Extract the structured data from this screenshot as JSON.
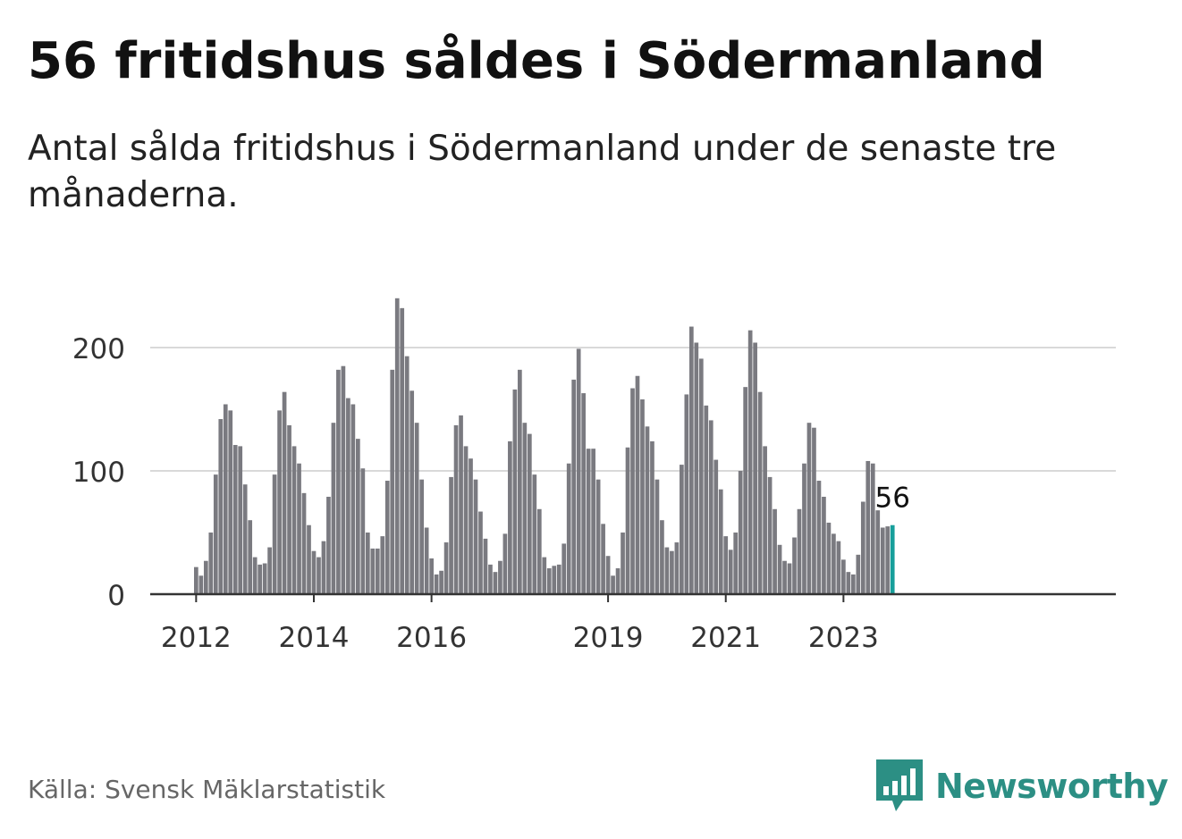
{
  "title": "56 fritidshus såldes i Södermanland",
  "subtitle": "Antal sålda fritidshus i Södermanland under de senaste tre månaderna.",
  "source": "Källa: Svensk Mäklarstatistik",
  "logo": {
    "text": "Newsworthy",
    "icon": "newsworthy-bar-icon",
    "color": "#2c8f84"
  },
  "chart_data": {
    "type": "bar",
    "title": "",
    "xlabel": "",
    "ylabel": "",
    "ylim": [
      0,
      240
    ],
    "y_ticks": [
      0,
      100,
      200
    ],
    "x_ticks": [
      "2012",
      "2014",
      "2016",
      "2019",
      "2021",
      "2023"
    ],
    "grid": true,
    "bar_color": "#7a7a80",
    "highlight_color": "#179f9b",
    "highlight_label": "56",
    "series": [
      {
        "values": [
          22,
          15,
          27,
          50,
          97,
          142,
          154,
          149,
          121,
          120,
          89,
          60,
          30,
          24,
          25,
          38,
          97,
          149,
          164,
          137,
          120,
          106,
          82,
          56,
          35,
          30,
          43,
          79,
          139,
          182,
          185,
          159,
          154,
          126,
          102,
          50,
          37,
          37,
          47,
          92,
          182,
          240,
          232,
          193,
          165,
          139,
          93,
          54,
          29,
          16,
          19,
          42,
          95,
          137,
          145,
          120,
          110,
          93,
          67,
          45,
          24,
          18,
          27,
          49,
          124,
          166,
          182,
          139,
          130,
          97,
          69,
          30,
          21,
          23,
          24,
          41,
          106,
          174,
          199,
          163,
          118,
          118,
          93,
          57,
          31,
          15,
          21,
          50,
          119,
          167,
          177,
          158,
          136,
          124,
          93,
          60,
          38,
          35,
          42,
          105,
          162,
          217,
          204,
          191,
          153,
          141,
          109,
          85,
          47,
          36,
          50,
          100,
          168,
          214,
          204,
          164,
          120,
          95,
          69,
          40,
          27,
          25,
          46,
          69,
          106,
          139,
          135,
          92,
          79,
          58,
          49,
          43,
          28,
          18,
          16,
          32,
          75,
          108,
          106,
          68,
          54,
          55,
          56
        ]
      }
    ]
  }
}
